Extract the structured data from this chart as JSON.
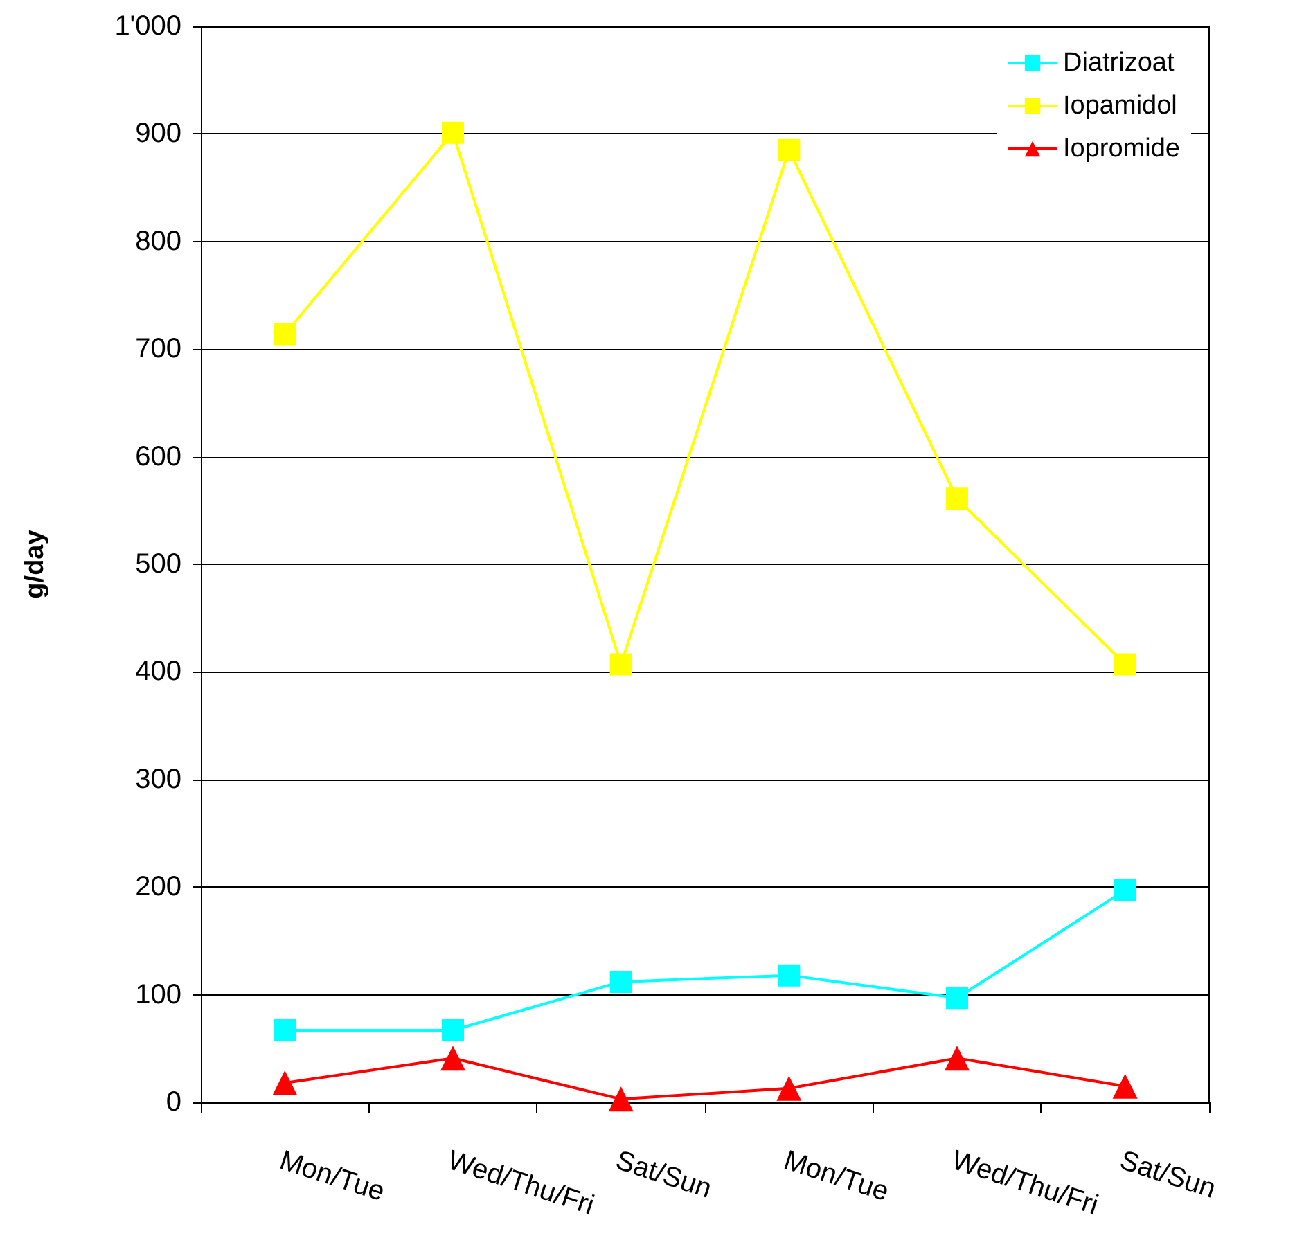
{
  "chart_data": {
    "type": "line",
    "ylabel": "g/day",
    "categories": [
      "Mon/Tue",
      "Wed/Thu/Fri",
      "Sat/Sun",
      "Mon/Tue",
      "Wed/Thu/Fri",
      "Sat/Sun"
    ],
    "series": [
      {
        "name": "Diatrizoat",
        "color": "#00ffff",
        "marker": "square",
        "values": [
          67,
          67,
          112,
          118,
          97,
          197
        ]
      },
      {
        "name": "Iopamidol",
        "color": "#ffff00",
        "marker": "square",
        "values": [
          714,
          901,
          407,
          885,
          561,
          407
        ]
      },
      {
        "name": "Iopromide",
        "color": "#ff0000",
        "marker": "triangle",
        "values": [
          18,
          41,
          3,
          13,
          41,
          15
        ]
      }
    ],
    "ylim": [
      0,
      1000
    ],
    "yticks": [
      0,
      100,
      200,
      300,
      400,
      500,
      600,
      700,
      800,
      900,
      {
        "value": 1000,
        "label": "1'000"
      }
    ],
    "grid": "y",
    "legend": "top right",
    "line_style": "solid"
  }
}
